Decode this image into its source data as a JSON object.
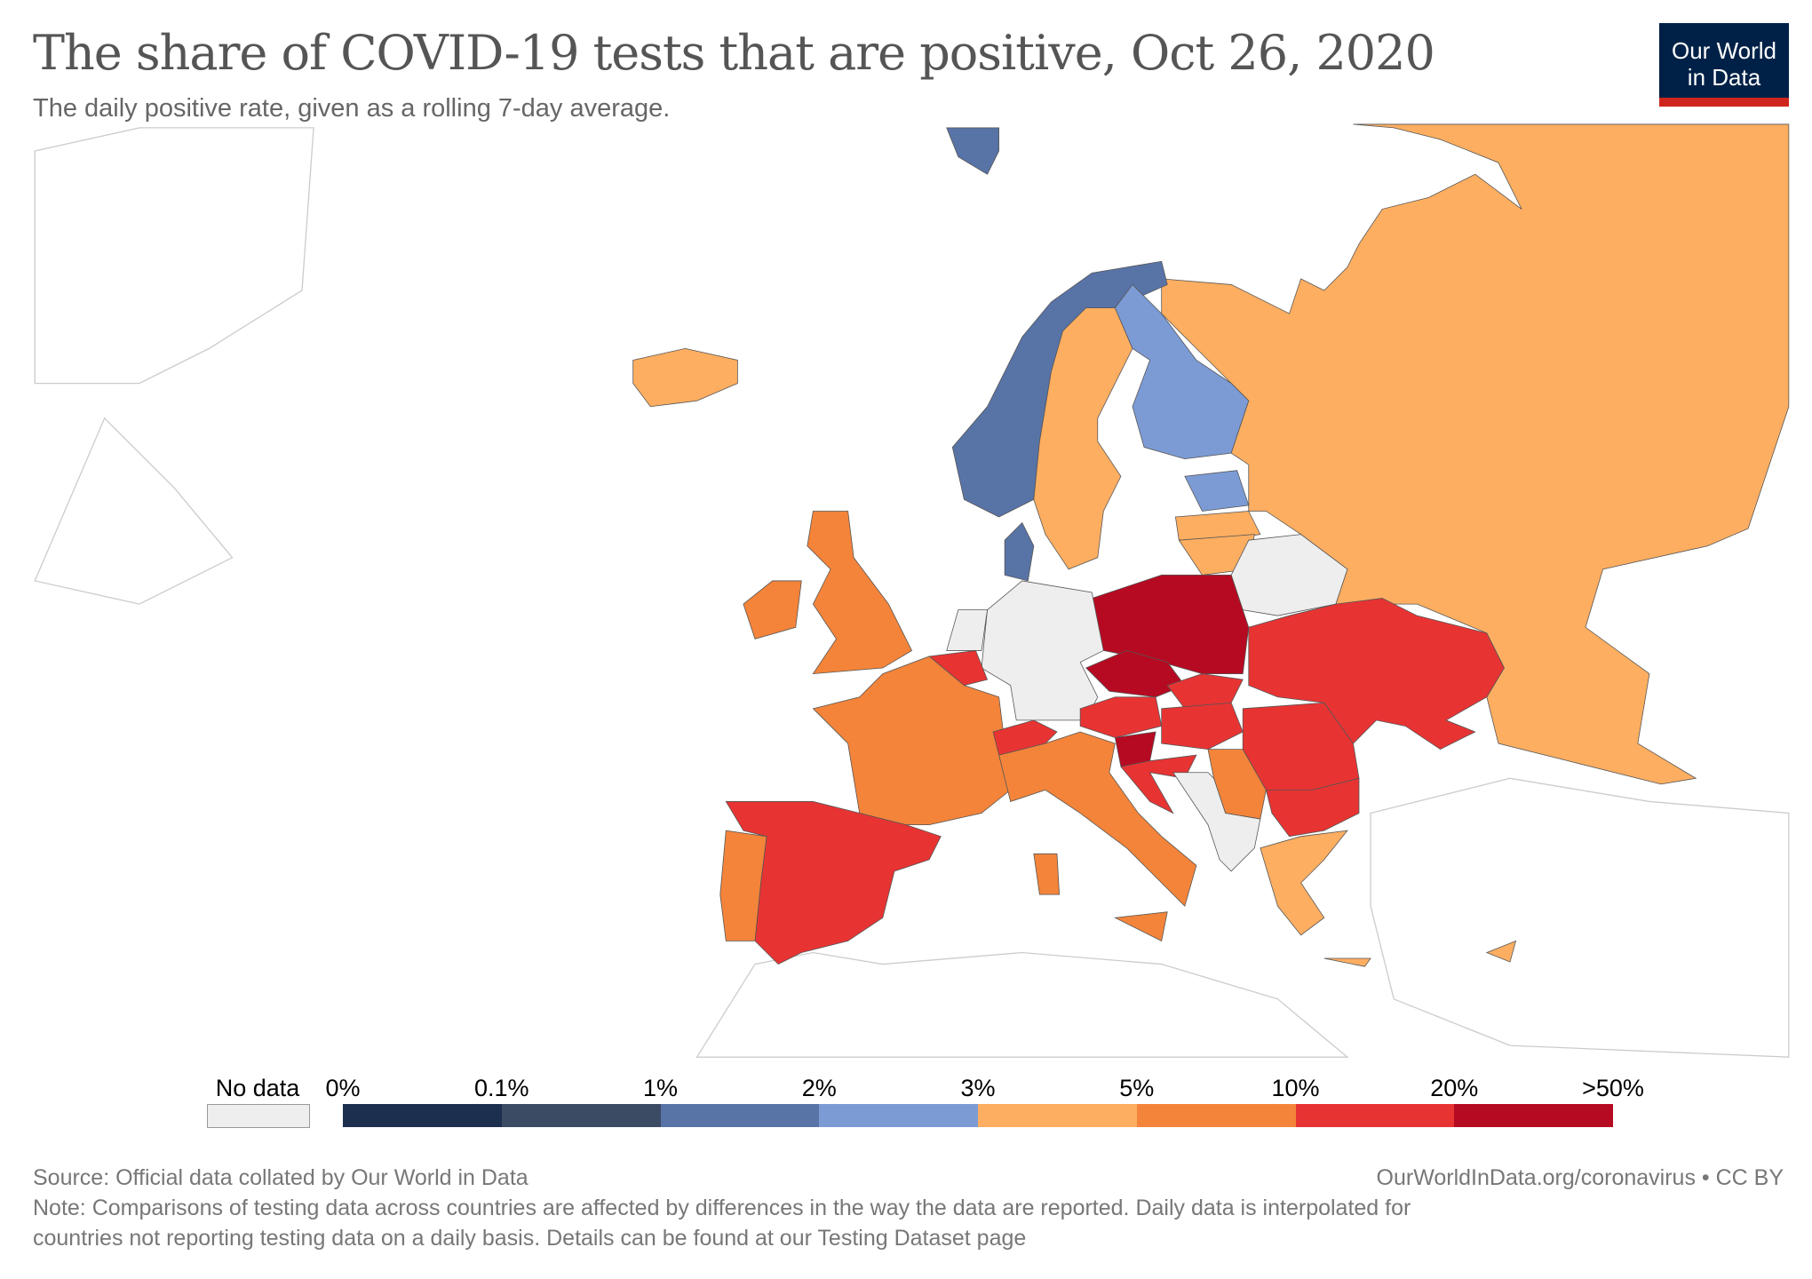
{
  "header": {
    "title": "The share of COVID-19 tests that are positive, Oct 26, 2020",
    "subtitle": "The daily positive rate, given as a rolling 7-day average.",
    "logo_text_line1": "Our World",
    "logo_text_line2": "in Data"
  },
  "legend": {
    "no_data_label": "No data",
    "no_data_color": "#eeeeee",
    "ticks": [
      "0%",
      "0.1%",
      "1%",
      "2%",
      "3%",
      "5%",
      "10%",
      "20%",
      ">50%"
    ],
    "bins": [
      {
        "range": "0–0.1%",
        "color": "#1d2f4f"
      },
      {
        "range": "0.1–1%",
        "color": "#3b4b63"
      },
      {
        "range": "1–2%",
        "color": "#5873a6"
      },
      {
        "range": "2–3%",
        "color": "#7c9bd5"
      },
      {
        "range": "3–5%",
        "color": "#fdae61"
      },
      {
        "range": "5–10%",
        "color": "#f3843a"
      },
      {
        "range": "10–20%",
        "color": "#e83333"
      },
      {
        "range": "20–50%",
        "color": "#b60a22"
      }
    ]
  },
  "countries": [
    {
      "name": "Russia",
      "bin": 4
    },
    {
      "name": "Norway",
      "bin": 2
    },
    {
      "name": "Svalbard",
      "bin": 2
    },
    {
      "name": "Sweden",
      "bin": 4
    },
    {
      "name": "Finland",
      "bin": 3
    },
    {
      "name": "Denmark",
      "bin": 2
    },
    {
      "name": "Estonia",
      "bin": 3
    },
    {
      "name": "Latvia",
      "bin": 4
    },
    {
      "name": "Lithuania",
      "bin": 4
    },
    {
      "name": "Belarus",
      "bin": null
    },
    {
      "name": "Poland",
      "bin": 7
    },
    {
      "name": "Germany",
      "bin": null
    },
    {
      "name": "Netherlands",
      "bin": null
    },
    {
      "name": "Belgium",
      "bin": 6
    },
    {
      "name": "France",
      "bin": 5
    },
    {
      "name": "Spain",
      "bin": 6
    },
    {
      "name": "Portugal",
      "bin": 5
    },
    {
      "name": "United Kingdom",
      "bin": 5
    },
    {
      "name": "Ireland",
      "bin": 5
    },
    {
      "name": "Iceland",
      "bin": 4
    },
    {
      "name": "Czechia",
      "bin": 7
    },
    {
      "name": "Slovakia",
      "bin": 6
    },
    {
      "name": "Austria",
      "bin": 6
    },
    {
      "name": "Hungary",
      "bin": 6
    },
    {
      "name": "Switzerland",
      "bin": 6
    },
    {
      "name": "Slovenia",
      "bin": 7
    },
    {
      "name": "Croatia",
      "bin": 6
    },
    {
      "name": "Italy",
      "bin": 5
    },
    {
      "name": "Serbia",
      "bin": 5
    },
    {
      "name": "Romania",
      "bin": 6
    },
    {
      "name": "Bulgaria",
      "bin": 6
    },
    {
      "name": "Greece",
      "bin": 4
    },
    {
      "name": "Ukraine",
      "bin": 6
    },
    {
      "name": "Western Balkans",
      "bin": null
    },
    {
      "name": "Cyprus",
      "bin": 4
    }
  ],
  "footer": {
    "source": "Source: Official data collated by Our World in Data",
    "url": "OurWorldInData.org/coronavirus • CC BY",
    "note_line1": "Note: Comparisons of testing data across countries are affected by differences in the way the data are reported. Daily data is interpolated for",
    "note_line2": "countries not reporting testing data on a daily basis. Details can be found at our Testing Dataset page"
  }
}
